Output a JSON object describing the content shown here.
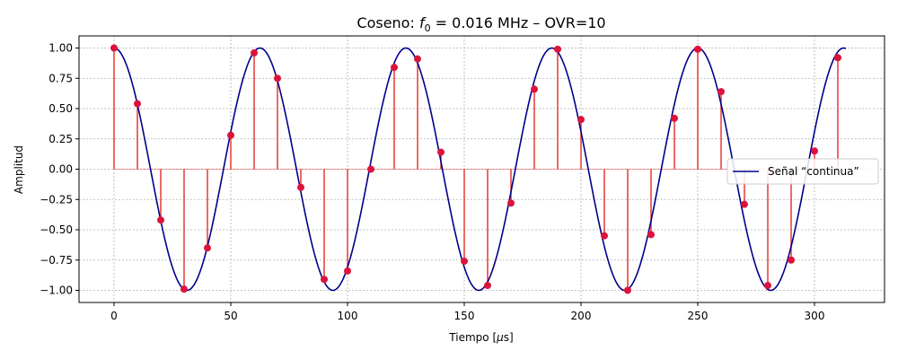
{
  "chart_data": {
    "type": "line",
    "title_prefix": "Coseno: ",
    "title_f": "f",
    "title_sub": "0",
    "title_suffix": " = 0.016 MHz  –  OVR=10",
    "xlabel_prefix": "Tiempo [",
    "xlabel_mu": "μ",
    "xlabel_suffix": "s]",
    "ylabel": "Amplitud",
    "xlim": [
      -15,
      330
    ],
    "ylim": [
      -1.1,
      1.1
    ],
    "xticks": [
      0,
      50,
      100,
      150,
      200,
      250,
      300
    ],
    "xtick_labels": [
      "0",
      "50",
      "100",
      "150",
      "200",
      "250",
      "300"
    ],
    "yticks": [
      1.0,
      0.75,
      0.5,
      0.25,
      0.0,
      -0.25,
      -0.5,
      -0.75,
      -1.0
    ],
    "ytick_labels": [
      "1.00",
      "0.75",
      "0.50",
      "0.25",
      "0.00",
      "−0.25",
      "−0.50",
      "−0.75",
      "−1.00"
    ],
    "grid": true,
    "legend_position": "center-right",
    "continuous": {
      "name": "Señal “continua”",
      "color": "#00008b",
      "frequency_mhz": 0.016,
      "x_start": 0,
      "x_end": 313.5
    },
    "samples": {
      "marker_color": "#dc143c",
      "stem_color": "#e53935",
      "x": [
        0,
        10,
        20,
        30,
        40,
        50,
        60,
        70,
        80,
        90,
        100,
        110,
        120,
        130,
        140,
        150,
        160,
        170,
        180,
        190,
        200,
        210,
        220,
        230,
        240,
        250,
        260,
        270,
        280,
        290,
        300,
        310
      ],
      "y": [
        1.0,
        0.54,
        -0.42,
        -0.99,
        -0.65,
        0.28,
        0.96,
        0.75,
        -0.15,
        -0.91,
        -0.84,
        0.0,
        0.84,
        0.91,
        0.14,
        -0.76,
        -0.96,
        -0.28,
        0.66,
        0.99,
        0.41,
        -0.55,
        -1.0,
        -0.54,
        0.42,
        0.99,
        0.64,
        -0.29,
        -0.96,
        -0.75,
        0.15,
        0.92
      ]
    }
  }
}
